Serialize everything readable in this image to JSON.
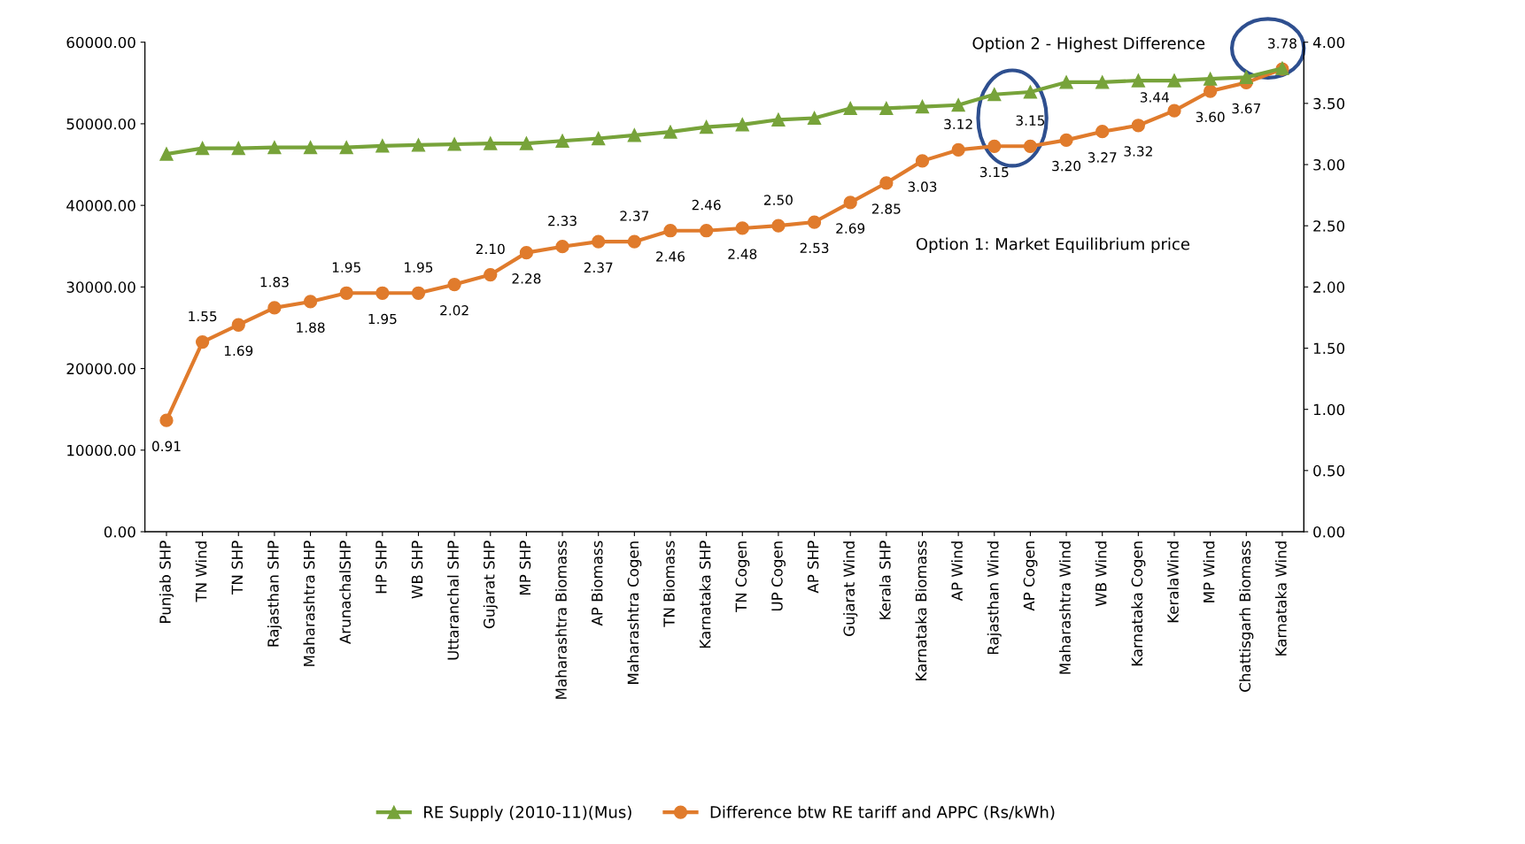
{
  "chart_data": {
    "type": "line",
    "categories": [
      "Punjab SHP",
      "TN Wind",
      "TN SHP",
      "Rajasthan SHP",
      "Maharashtra SHP",
      "ArunachalSHP",
      "HP SHP",
      "WB SHP",
      "Uttaranchal SHP",
      "Gujarat SHP",
      "MP SHP",
      "Maharashtra Biomass",
      "AP Biomass",
      "Maharashtra Cogen",
      "TN Biomass",
      "Karnataka SHP",
      "TN Cogen",
      "UP Cogen",
      "AP SHP",
      "Gujarat Wind",
      "Kerala SHP",
      "Karnataka Biomass",
      "AP Wind",
      "Rajasthan Wind",
      "AP Cogen",
      "Maharashtra Wind",
      "WB Wind",
      "Karnataka Cogen",
      "KeralaWind",
      "MP Wind",
      "Chattisgarh Biomass",
      "Karnataka Wind"
    ],
    "series": [
      {
        "name": "RE Supply (2010-11)(Mus)",
        "color": "#77a33a",
        "marker": "triangle",
        "values": [
          46300,
          47000,
          47000,
          47100,
          47100,
          47100,
          47300,
          47400,
          47500,
          47600,
          47600,
          47900,
          48200,
          48600,
          49000,
          49600,
          49900,
          50500,
          50700,
          51900,
          51900,
          52100,
          52300,
          53600,
          53900,
          55100,
          55100,
          55300,
          55300,
          55500,
          55700,
          56800
        ]
      },
      {
        "name": "Difference btw RE tariff and APPC (Rs/kWh)",
        "color": "#e07b2c",
        "marker": "circle",
        "axis": "y2",
        "value_labels": [
          "0.91",
          "1.55",
          "1.69",
          "1.83",
          "1.88",
          "1.95",
          "1.95",
          "1.95",
          "2.02",
          "2.10",
          "2.28",
          "2.33",
          "2.37",
          "2.37",
          "2.46",
          "2.46",
          "2.48",
          "2.50",
          "2.53",
          "2.69",
          "2.85",
          "3.03",
          "3.12",
          "3.15",
          "3.15",
          "3.20",
          "3.27",
          "3.32",
          "3.44",
          "3.60",
          "3.67",
          "3.78"
        ],
        "values": [
          0.91,
          1.55,
          1.69,
          1.83,
          1.88,
          1.95,
          1.95,
          1.95,
          2.02,
          2.1,
          2.28,
          2.33,
          2.37,
          2.37,
          2.46,
          2.46,
          2.48,
          2.5,
          2.53,
          2.69,
          2.85,
          3.03,
          3.12,
          3.15,
          3.15,
          3.2,
          3.27,
          3.32,
          3.44,
          3.6,
          3.67,
          3.78
        ]
      }
    ],
    "ylim": [
      0,
      60000
    ],
    "yticks": [
      {
        "value": 0,
        "label": "0.00"
      },
      {
        "value": 10000,
        "label": "10000.00"
      },
      {
        "value": 20000,
        "label": "20000.00"
      },
      {
        "value": 30000,
        "label": "30000.00"
      },
      {
        "value": 40000,
        "label": "40000.00"
      },
      {
        "value": 50000,
        "label": "50000.00"
      },
      {
        "value": 60000,
        "label": "60000.00"
      }
    ],
    "y2lim": [
      0,
      4
    ],
    "y2ticks": [
      {
        "value": 0,
        "label": "0.00"
      },
      {
        "value": 0.5,
        "label": "0.50"
      },
      {
        "value": 1,
        "label": "1.00"
      },
      {
        "value": 1.5,
        "label": "1.50"
      },
      {
        "value": 2,
        "label": "2.00"
      },
      {
        "value": 2.5,
        "label": "2.50"
      },
      {
        "value": 3,
        "label": "3.00"
      },
      {
        "value": 3.5,
        "label": "3.50"
      },
      {
        "value": 4,
        "label": "4.00"
      }
    ],
    "annotations": [
      "Option 2 - Highest Difference",
      "Option 1: Market Equilibrium price"
    ],
    "grid": false,
    "legend": "bottom",
    "line_style": "solid"
  }
}
